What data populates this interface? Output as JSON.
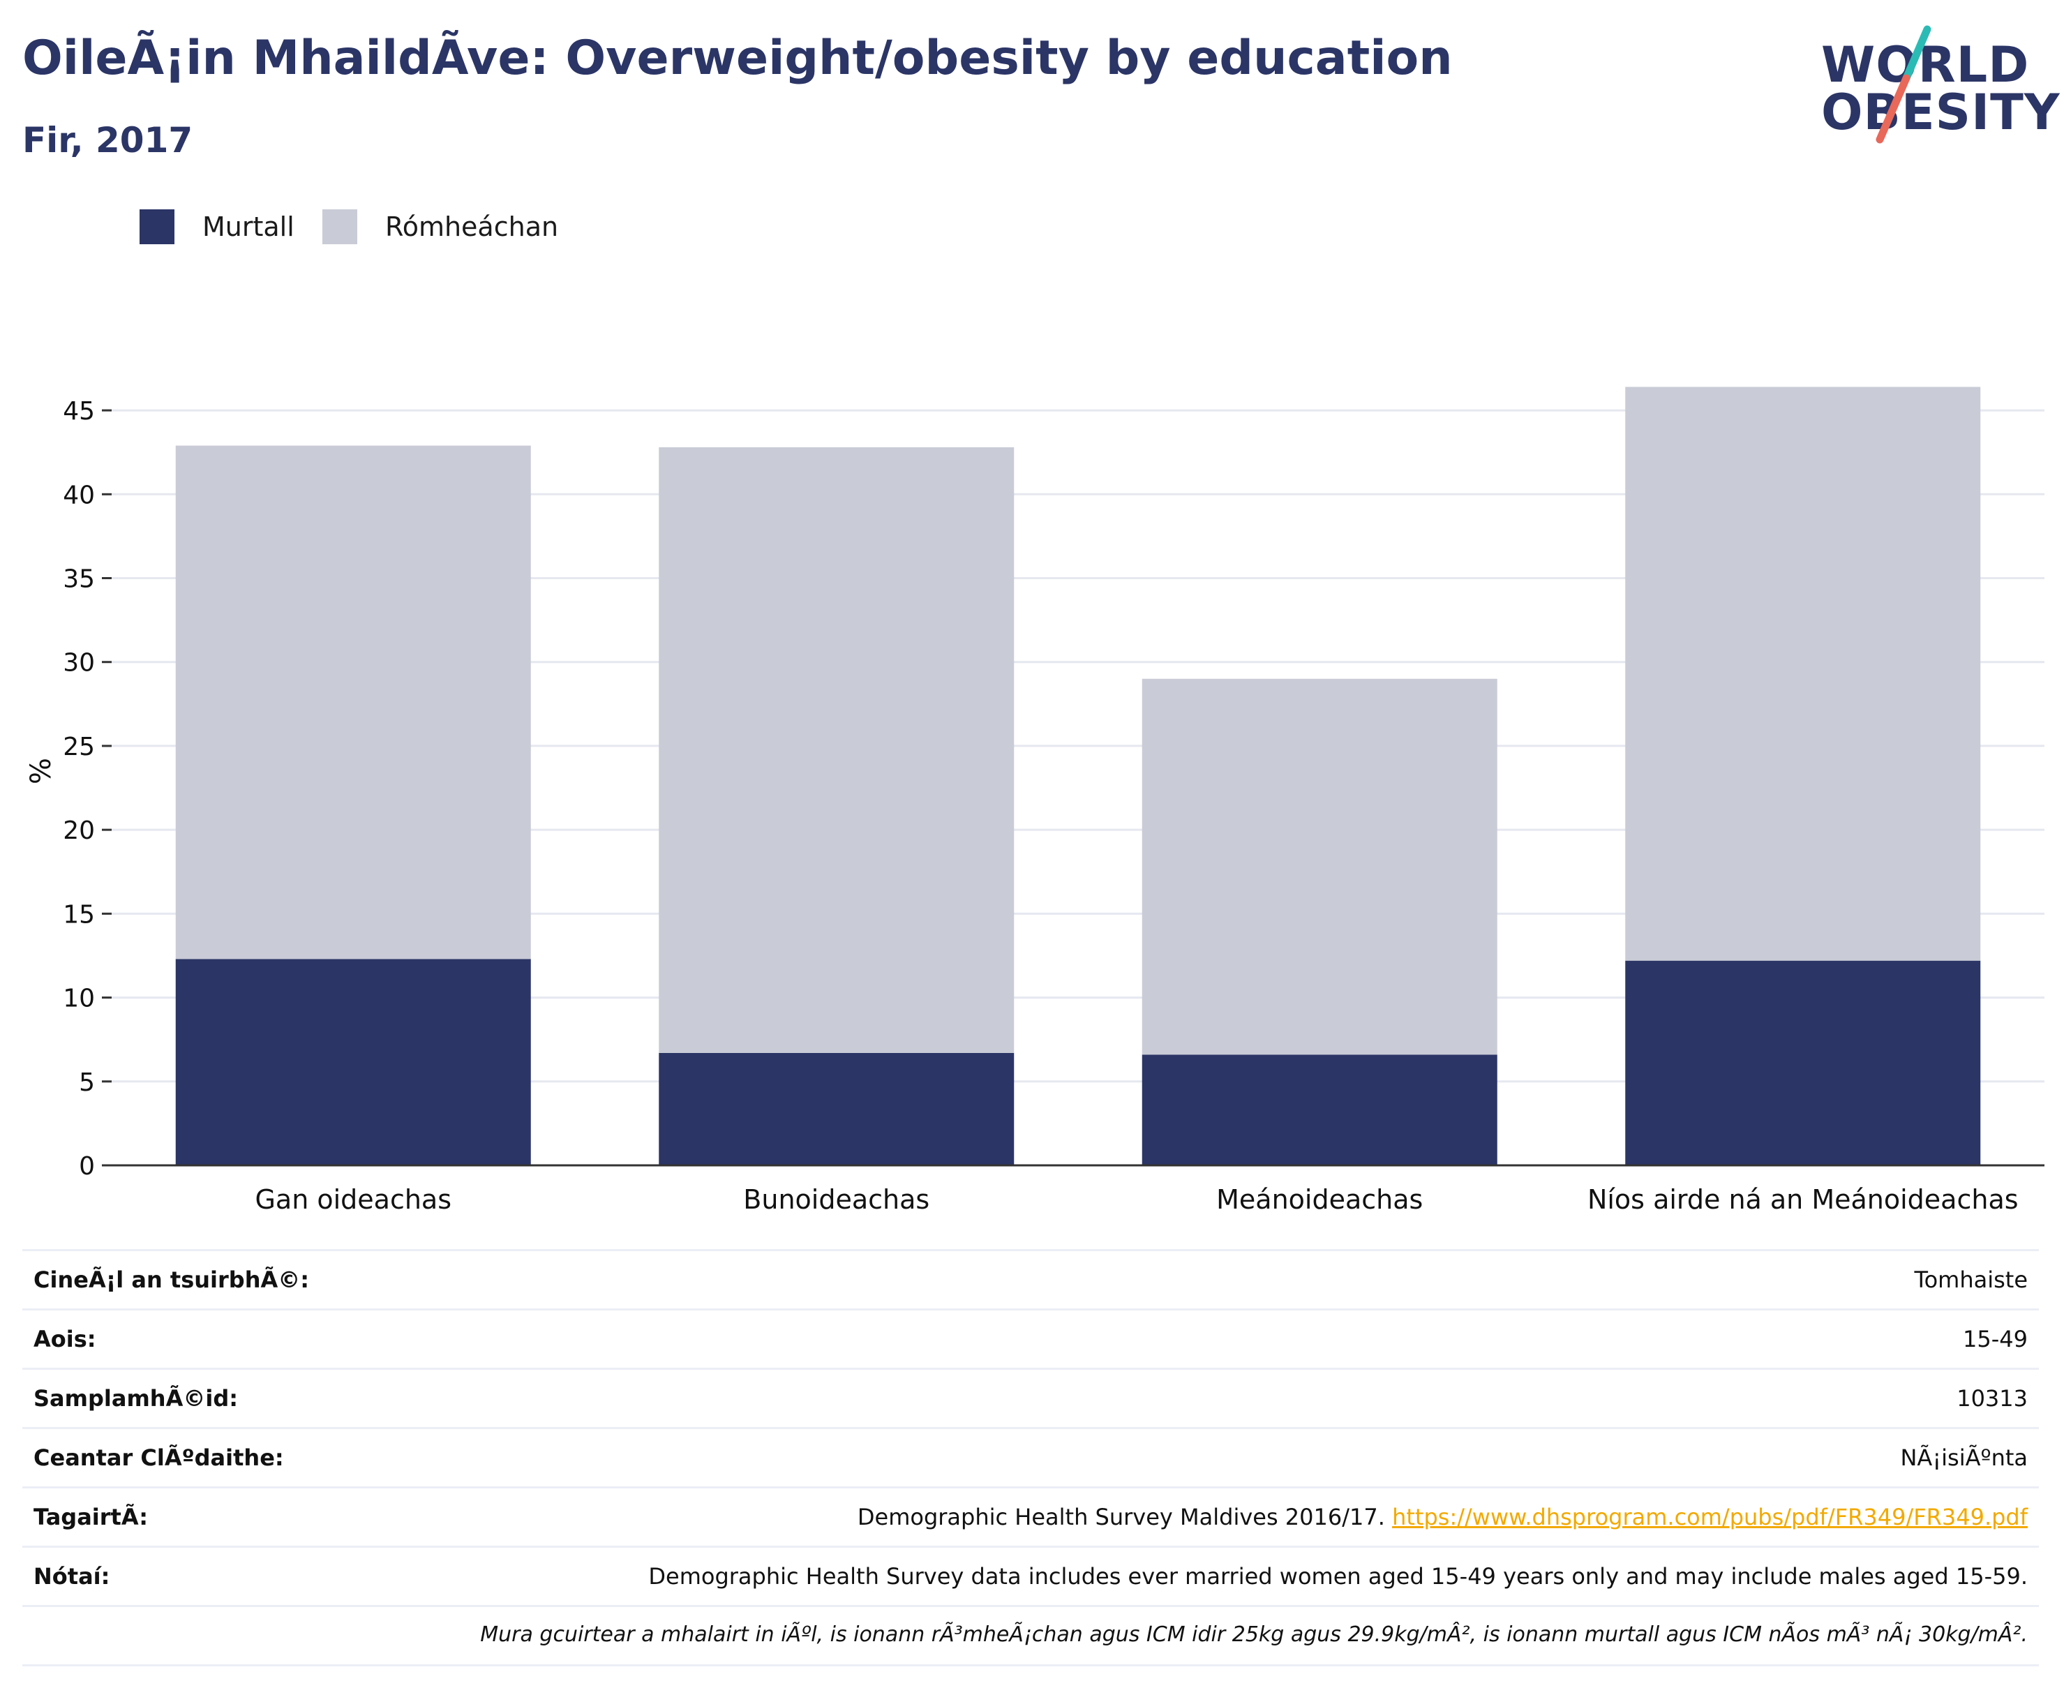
{
  "header": {
    "title": "OileÃ¡in MhaildÃve: Overweight/obesity by education",
    "subtitle": "Fir, 2017",
    "logo_line1": "WORLD",
    "logo_line2": "OBESITY"
  },
  "colors": {
    "obese": "#2b3566",
    "overweight": "#c9cbd6",
    "text": "#2b3566",
    "link": "#f2a900",
    "logo_teal": "#2bbbb5",
    "logo_red": "#e8685a"
  },
  "chart_data": {
    "type": "bar",
    "stacked": true,
    "categories": [
      "Gan oideachas",
      "Bunoideachas",
      "Meánoideachas",
      "Níos airde ná an Meánoideachas"
    ],
    "series": [
      {
        "name": "Murtall",
        "values": [
          12.3,
          6.7,
          6.6,
          12.2
        ]
      },
      {
        "name": "Rómheáchan",
        "values": [
          30.6,
          36.1,
          22.4,
          34.2
        ]
      }
    ],
    "ylabel": "%",
    "ylim": [
      0,
      47
    ],
    "yticks": [
      0,
      5,
      10,
      15,
      20,
      25,
      30,
      35,
      40,
      45
    ],
    "grid": true,
    "legend": "top-left"
  },
  "info": [
    {
      "label": "CineÃ¡l an tsuirbhÃ©:",
      "value": "Tomhaiste"
    },
    {
      "label": "Aois:",
      "value": "15-49"
    },
    {
      "label": "SamplamhÃ©id:",
      "value": "10313"
    },
    {
      "label": "Ceantar ClÃºdaithe:",
      "value": "NÃ¡isiÃºnta"
    }
  ],
  "reference": {
    "label": "TagairtÃ:",
    "text": "Demographic Health Survey Maldives 2016/17.",
    "url": "https://www.dhsprogram.com/pubs/pdf/FR349/FR349.pdf"
  },
  "notes": {
    "label": "Nótaí:",
    "text": "Demographic Health Survey data includes ever married women aged 15-49 years only and may include males aged 15-59.",
    "definition": "Mura gcuirtear a mhalairt in iÃºl, is ionann rÃ³mheÃ¡chan agus ICM idir 25kg agus 29.9kg/mÂ², is ionann murtall agus ICM nÃos mÃ³ nÃ¡ 30kg/mÂ²."
  }
}
